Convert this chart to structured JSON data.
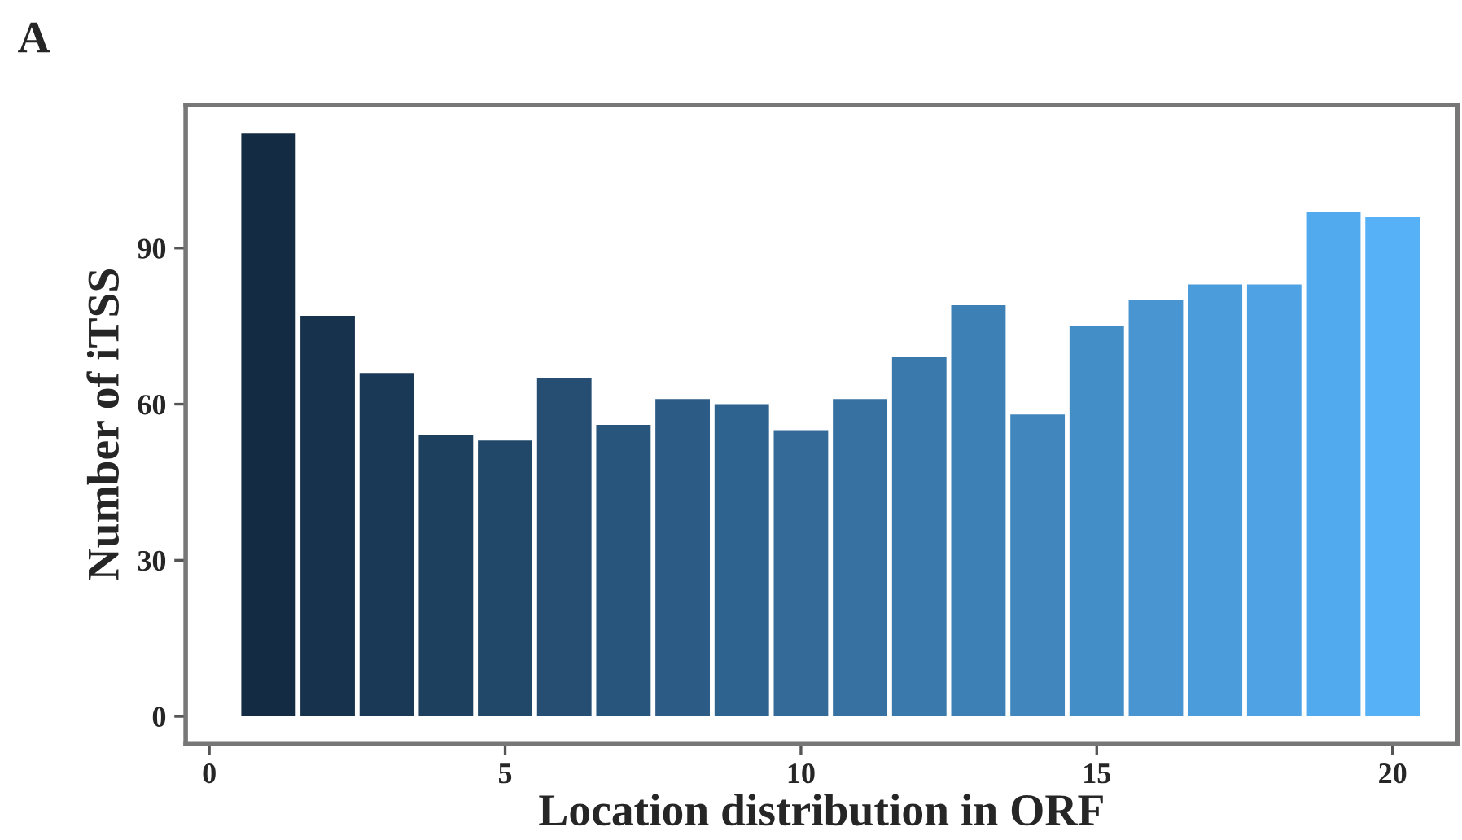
{
  "chart_data": {
    "type": "bar",
    "title": "A",
    "xlabel": "Location distribution in ORF",
    "ylabel": "Number of iTSS",
    "x": [
      1,
      2,
      3,
      4,
      5,
      6,
      7,
      8,
      9,
      10,
      11,
      12,
      13,
      14,
      15,
      16,
      17,
      18,
      19,
      20
    ],
    "values": [
      112,
      77,
      66,
      54,
      53,
      65,
      56,
      61,
      60,
      55,
      61,
      69,
      79,
      58,
      75,
      80,
      83,
      83,
      97,
      96
    ],
    "colors": [
      "#132b43",
      "#17324c",
      "#1a3956",
      "#1e405f",
      "#214769",
      "#254e72",
      "#28557c",
      "#2c5c85",
      "#2f638f",
      "#336a98",
      "#3671a2",
      "#3a79ab",
      "#3d80b5",
      "#4187be",
      "#448ec8",
      "#4895d1",
      "#4b9cdb",
      "#4fa3e4",
      "#52aaee",
      "#56b1f7"
    ],
    "xlim": [
      -0.4,
      21.1
    ],
    "xticks": [
      0,
      5,
      10,
      15,
      20
    ],
    "ylim": [
      -5.2,
      117.5
    ],
    "yticks": [
      0,
      30,
      60,
      90
    ],
    "grid": false,
    "legend": false
  }
}
